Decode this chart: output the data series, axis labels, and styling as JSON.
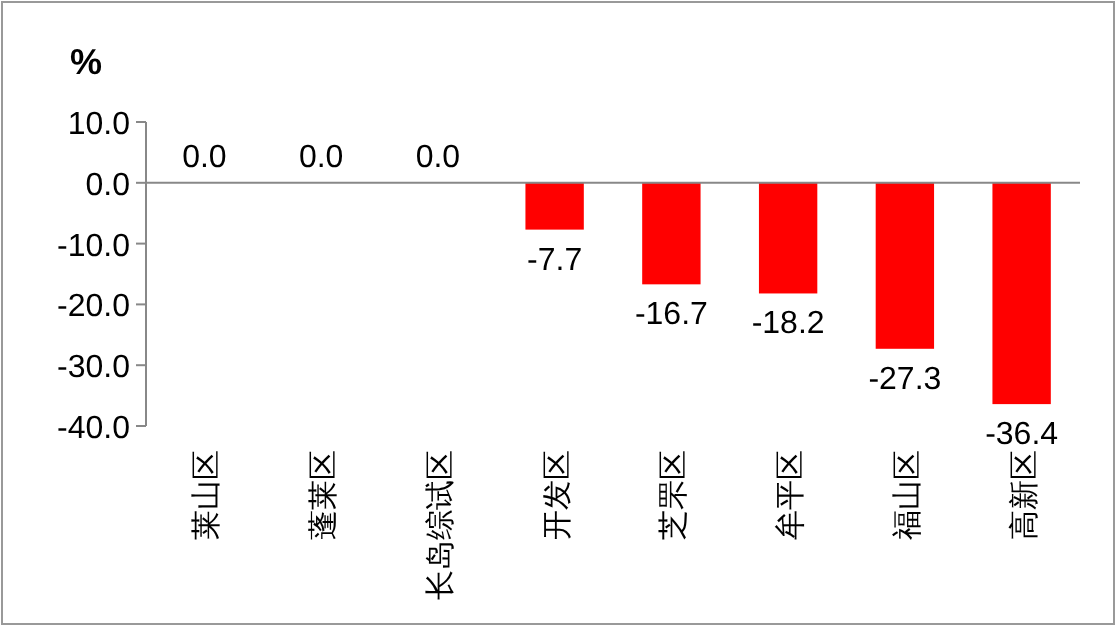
{
  "chart_data": {
    "type": "bar",
    "ylabel": "%",
    "categories": [
      "莱山区",
      "蓬莱区",
      "长岛综试区",
      "开发区",
      "芝罘区",
      "牟平区",
      "福山区",
      "高新区"
    ],
    "values": [
      0.0,
      0.0,
      0.0,
      -7.7,
      -16.7,
      -18.2,
      -27.3,
      -36.4
    ],
    "color": "#ff0000",
    "value_labels": [
      "0.0",
      "0.0",
      "0.0",
      "-7.7",
      "-16.7",
      "-18.2",
      "-27.3",
      "-36.4"
    ],
    "ylim": [
      -40,
      10
    ],
    "yticks": [
      {
        "value": 10,
        "label": "10.0"
      },
      {
        "value": 0,
        "label": "0.0"
      },
      {
        "value": -10,
        "label": "-10.0"
      },
      {
        "value": -20,
        "label": "-20.0"
      },
      {
        "value": -30,
        "label": "-30.0"
      },
      {
        "value": -40,
        "label": "-40.0"
      }
    ]
  }
}
